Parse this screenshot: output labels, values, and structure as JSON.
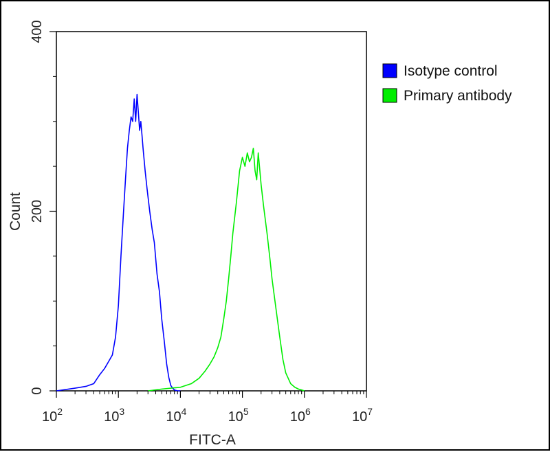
{
  "chart_data": {
    "type": "line",
    "title": "",
    "xlabel": "FITC-A",
    "ylabel": "Count",
    "x_scale": "log",
    "xlim": [
      100,
      10000000
    ],
    "ylim": [
      0,
      400
    ],
    "x_ticks": [
      {
        "value": 100,
        "base": "10",
        "exp": "2"
      },
      {
        "value": 1000,
        "base": "10",
        "exp": "3"
      },
      {
        "value": 10000,
        "base": "10",
        "exp": "4"
      },
      {
        "value": 100000,
        "base": "10",
        "exp": "5"
      },
      {
        "value": 1000000,
        "base": "10",
        "exp": "6"
      },
      {
        "value": 10000000,
        "base": "10",
        "exp": "7"
      }
    ],
    "y_ticks": [
      {
        "value": 0,
        "label": "0"
      },
      {
        "value": 200,
        "label": "200"
      },
      {
        "value": 400,
        "label": "400"
      }
    ],
    "grid": false,
    "legend_position": "right",
    "series": [
      {
        "name": "Isotype control",
        "color": "#0000ff",
        "x": [
          100,
          200,
          300,
          400,
          500,
          600,
          700,
          800,
          900,
          1000,
          1100,
          1200,
          1300,
          1400,
          1500,
          1600,
          1700,
          1800,
          1900,
          2000,
          2100,
          2200,
          2300,
          2400,
          2500,
          2700,
          2900,
          3200,
          3500,
          3800,
          4200,
          4600,
          5000,
          5500,
          6000,
          6500,
          7000,
          7500,
          8000,
          9000,
          10000
        ],
        "y": [
          0,
          3,
          5,
          8,
          18,
          25,
          33,
          40,
          60,
          95,
          150,
          195,
          235,
          270,
          290,
          305,
          300,
          325,
          300,
          330,
          310,
          290,
          300,
          285,
          270,
          245,
          225,
          200,
          180,
          165,
          130,
          110,
          80,
          55,
          30,
          15,
          6,
          3,
          1,
          0,
          0
        ]
      },
      {
        "name": "Primary antibody",
        "color": "#00ee00",
        "x": [
          3000,
          5000,
          10000,
          15000,
          20000,
          25000,
          30000,
          35000,
          40000,
          45000,
          50000,
          55000,
          60000,
          65000,
          70000,
          80000,
          90000,
          100000,
          110000,
          120000,
          130000,
          140000,
          150000,
          160000,
          170000,
          180000,
          200000,
          220000,
          250000,
          280000,
          300000,
          350000,
          400000,
          450000,
          500000,
          600000,
          700000,
          800000,
          900000,
          1000000
        ],
        "y": [
          0,
          2,
          4,
          8,
          14,
          22,
          30,
          38,
          48,
          60,
          80,
          100,
          125,
          150,
          175,
          210,
          245,
          260,
          250,
          265,
          255,
          260,
          270,
          245,
          235,
          265,
          230,
          205,
          175,
          145,
          125,
          90,
          60,
          35,
          20,
          8,
          4,
          2,
          1,
          0
        ]
      }
    ]
  }
}
